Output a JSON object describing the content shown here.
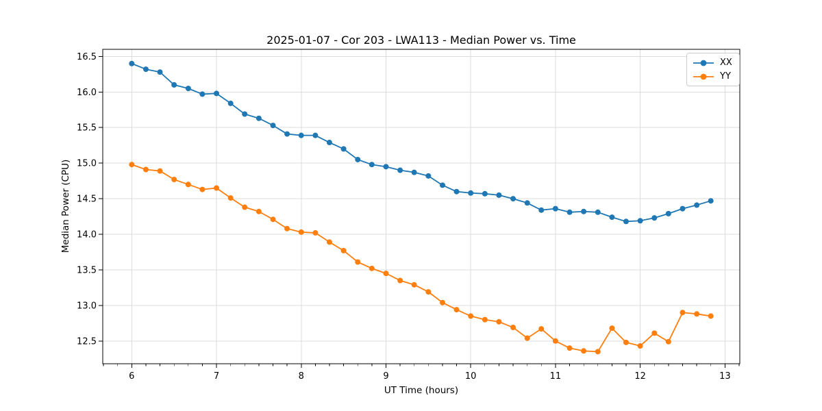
{
  "figure": {
    "background": "#ffffff"
  },
  "chart_data": {
    "type": "line",
    "title": "2025-01-07 - Cor 203 - LWA113 - Median Power vs. Time",
    "xlabel": "UT Time (hours)",
    "ylabel": "Median Power (CPU)",
    "grid": true,
    "legend_position": "upper right",
    "axis": {
      "xlim": [
        5.658,
        13.175
      ],
      "ylim": [
        12.18,
        16.6
      ],
      "xticks": [
        6,
        7,
        8,
        9,
        10,
        11,
        12,
        13
      ],
      "xtick_labels": [
        "6",
        "7",
        "8",
        "9",
        "10",
        "11",
        "12",
        "13"
      ],
      "x_minor_tick_step": 0.166667,
      "yticks": [
        12.5,
        13.0,
        13.5,
        14.0,
        14.5,
        15.0,
        15.5,
        16.0,
        16.5
      ],
      "ytick_labels": [
        "12.5",
        "13.0",
        "13.5",
        "14.0",
        "14.5",
        "15.0",
        "15.5",
        "16.0",
        "16.5"
      ]
    },
    "x": [
      6.0,
      6.167,
      6.333,
      6.5,
      6.667,
      6.833,
      7.0,
      7.167,
      7.333,
      7.5,
      7.667,
      7.833,
      8.0,
      8.167,
      8.333,
      8.5,
      8.667,
      8.833,
      9.0,
      9.167,
      9.333,
      9.5,
      9.667,
      9.833,
      10.0,
      10.167,
      10.333,
      10.5,
      10.667,
      10.833,
      11.0,
      11.167,
      11.333,
      11.5,
      11.667,
      11.833,
      12.0,
      12.167,
      12.333,
      12.5,
      12.667,
      12.833
    ],
    "series": [
      {
        "name": "XX",
        "color": "#1f77b4",
        "marker": "circle",
        "values": [
          16.4,
          16.32,
          16.28,
          16.1,
          16.05,
          15.97,
          15.98,
          15.84,
          15.69,
          15.63,
          15.53,
          15.41,
          15.39,
          15.39,
          15.29,
          15.2,
          15.05,
          14.98,
          14.95,
          14.9,
          14.87,
          14.82,
          14.69,
          14.6,
          14.58,
          14.57,
          14.55,
          14.5,
          14.44,
          14.34,
          14.36,
          14.31,
          14.32,
          14.31,
          14.24,
          14.18,
          14.19,
          14.23,
          14.29,
          14.36,
          14.41,
          14.47
        ]
      },
      {
        "name": "YY",
        "color": "#ff7f0e",
        "marker": "circle",
        "values": [
          14.98,
          14.91,
          14.89,
          14.77,
          14.7,
          14.63,
          14.65,
          14.51,
          14.38,
          14.32,
          14.21,
          14.08,
          14.03,
          14.02,
          13.89,
          13.77,
          13.61,
          13.52,
          13.45,
          13.35,
          13.29,
          13.19,
          13.04,
          12.94,
          12.85,
          12.8,
          12.77,
          12.69,
          12.54,
          12.67,
          12.5,
          12.4,
          12.36,
          12.35,
          12.68,
          12.48,
          12.43,
          12.61,
          12.49,
          12.9,
          12.88,
          12.85
        ]
      }
    ],
    "style": {
      "grid_color": "#dcdcdc",
      "spine_color": "#000000",
      "line_width": 1.8,
      "marker_radius": 4
    }
  }
}
